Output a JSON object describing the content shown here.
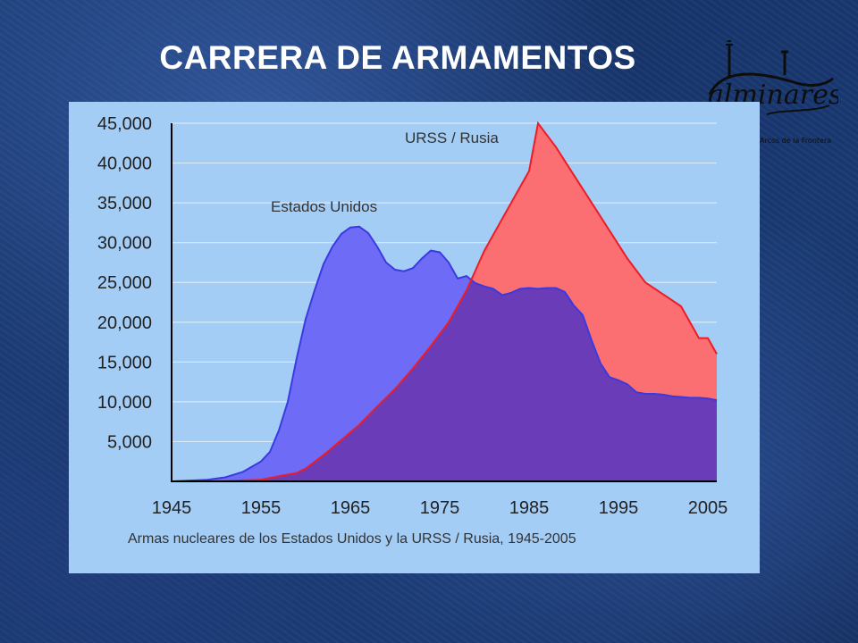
{
  "slide": {
    "title": "CARRERA DE ARMAMENTOS"
  },
  "logo": {
    "wordmark": "alminares",
    "tagline": "Arcos de la Frontera"
  },
  "colors": {
    "background": "#1b3b74",
    "plot_background": "#a4cdf6",
    "us_fill": "#6e6cf6",
    "us_line": "#3a3ae0",
    "ussr_fill": "#fb6f73",
    "ussr_line": "#ee1c24",
    "overlap_fill": "#6a3cb8",
    "title": "#ffffff"
  },
  "chart_data": {
    "type": "area",
    "title": "",
    "caption": "Armas nucleares de los Estados Unidos y la URSS / Rusia, 1945-2005",
    "xlabel": "",
    "ylabel": "",
    "xlim": [
      1945,
      2006
    ],
    "ylim": [
      0,
      45000
    ],
    "x_ticks": [
      "1945",
      "1955",
      "1965",
      "1975",
      "1985",
      "1995",
      "2005"
    ],
    "y_ticks": [
      "5,000",
      "10,000",
      "15,000",
      "20,000",
      "25,000",
      "30,000",
      "35,000",
      "40,000",
      "45,000"
    ],
    "grid": "horizontal",
    "series": [
      {
        "name": "Estados Unidos",
        "color": "#6e6cf6",
        "x": [
          1945,
          1947,
          1949,
          1951,
          1953,
          1955,
          1956,
          1957,
          1958,
          1959,
          1960,
          1961,
          1962,
          1963,
          1964,
          1965,
          1966,
          1967,
          1968,
          1969,
          1970,
          1971,
          1972,
          1973,
          1974,
          1975,
          1976,
          1977,
          1978,
          1979,
          1980,
          1981,
          1982,
          1983,
          1984,
          1985,
          1986,
          1987,
          1988,
          1989,
          1990,
          1991,
          1992,
          1993,
          1994,
          1995,
          1996,
          1997,
          1998,
          1999,
          2000,
          2001,
          2002,
          2003,
          2004,
          2005,
          2006
        ],
        "values": [
          0,
          100,
          200,
          500,
          1200,
          2500,
          3700,
          6400,
          10000,
          15500,
          20400,
          24000,
          27300,
          29500,
          31100,
          31900,
          32000,
          31200,
          29500,
          27500,
          26600,
          26400,
          26800,
          28000,
          29000,
          28800,
          27500,
          25500,
          25800,
          24900,
          24500,
          24200,
          23400,
          23700,
          24200,
          24300,
          24200,
          24300,
          24300,
          23800,
          22100,
          20900,
          17700,
          14800,
          13100,
          12700,
          12200,
          11200,
          11000,
          11000,
          10900,
          10700,
          10600,
          10500,
          10500,
          10400,
          10200
        ]
      },
      {
        "name": "URSS / Rusia",
        "color": "#fb6f73",
        "x": [
          1945,
          1949,
          1951,
          1953,
          1955,
          1957,
          1959,
          1960,
          1962,
          1964,
          1966,
          1968,
          1970,
          1972,
          1974,
          1976,
          1978,
          1980,
          1982,
          1984,
          1985,
          1986,
          1988,
          1990,
          1992,
          1994,
          1996,
          1998,
          2000,
          2002,
          2003,
          2004,
          2005,
          2006
        ],
        "values": [
          0,
          0,
          25,
          120,
          200,
          650,
          1060,
          1600,
          3300,
          5200,
          7100,
          9400,
          11600,
          14200,
          17000,
          20000,
          24000,
          29000,
          33000,
          37000,
          39000,
          45000,
          42000,
          38500,
          35000,
          31500,
          28000,
          25000,
          23500,
          22000,
          20000,
          18000,
          18000,
          16000
        ]
      }
    ]
  }
}
